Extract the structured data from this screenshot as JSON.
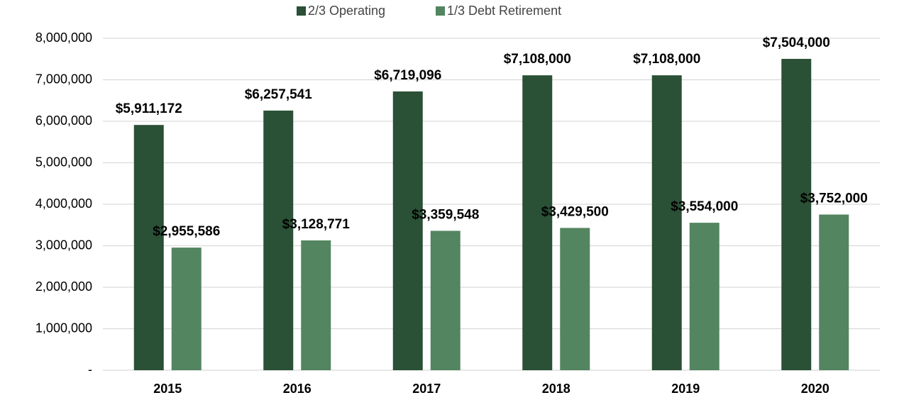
{
  "chart_data": {
    "type": "bar",
    "categories": [
      "2015",
      "2016",
      "2017",
      "2018",
      "2019",
      "2020"
    ],
    "series": [
      {
        "name": "2/3 Operating",
        "color": "#2a5035",
        "values": [
          5911172,
          6257541,
          6719096,
          7108000,
          7108000,
          7504000
        ],
        "value_labels": [
          "$5,911,172",
          "$6,257,541",
          "$6,719,096",
          "$7,108,000",
          "$7,108,000",
          "$7,504,000"
        ]
      },
      {
        "name": "1/3 Debt Retirement",
        "color": "#538560",
        "values": [
          2955586,
          3128771,
          3359548,
          3429500,
          3554000,
          3752000
        ],
        "value_labels": [
          "$2,955,586",
          "$3,128,771",
          "$3,359,548",
          "$3,429,500",
          "$3,554,000",
          "$3,752,000"
        ]
      }
    ],
    "ylim": [
      0,
      8000000
    ],
    "yticks": [
      {
        "value": 0,
        "label": "-"
      },
      {
        "value": 1000000,
        "label": "1,000,000"
      },
      {
        "value": 2000000,
        "label": "2,000,000"
      },
      {
        "value": 3000000,
        "label": "3,000,000"
      },
      {
        "value": 4000000,
        "label": "4,000,000"
      },
      {
        "value": 5000000,
        "label": "5,000,000"
      },
      {
        "value": 6000000,
        "label": "6,000,000"
      },
      {
        "value": 7000000,
        "label": "7,000,000"
      },
      {
        "value": 8000000,
        "label": "8,000,000"
      }
    ],
    "grid": true,
    "legend": "top"
  }
}
